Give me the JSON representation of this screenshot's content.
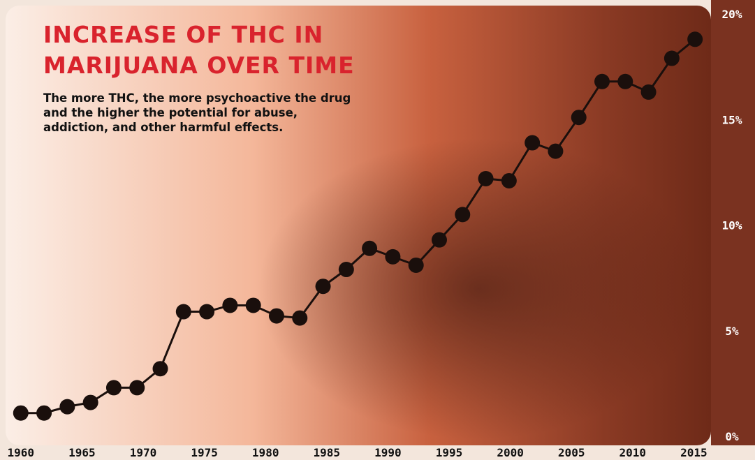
{
  "chart_data": {
    "type": "line",
    "title": "INCREASE OF THC IN MARIJUANA OVER TIME",
    "subtitle": "The more THC, the more psychoactive the drug and the higher the potential for abuse, addiction, and other harmful effects.",
    "x": [
      1960,
      1961.9,
      1963.8,
      1965.7,
      1967.6,
      1969.5,
      1971.4,
      1973.3,
      1975.2,
      1977.1,
      1979,
      1980.9,
      1982.8,
      1984.7,
      1986.6,
      1988.5,
      1990.4,
      1992.3,
      1994.2,
      1996.1,
      1998,
      1999.9,
      2001.8,
      2003.7,
      2005.6,
      2007.5,
      2009.4,
      2011.3,
      2013.2,
      2015.1
    ],
    "series": [
      {
        "name": "THC",
        "color": "#1a0f0c",
        "values": [
          1.1,
          1.1,
          1.4,
          1.6,
          2.3,
          2.3,
          3.2,
          5.9,
          5.9,
          6.2,
          6.2,
          5.7,
          5.6,
          7.1,
          7.9,
          8.9,
          8.5,
          8.1,
          9.3,
          10.5,
          12.2,
          12.1,
          13.9,
          13.5,
          15.1,
          16.8,
          16.8,
          16.3,
          17.9,
          18.8
        ]
      }
    ],
    "xlim": [
      1958.3,
      2020
    ],
    "xticks": [
      1960,
      1965,
      1970,
      1975,
      1980,
      1985,
      1990,
      1995,
      2000,
      2005,
      2010,
      2015
    ],
    "ylim": [
      0,
      20
    ],
    "yticks": [
      {
        "value": 0,
        "label": "0%"
      },
      {
        "value": 5,
        "label": "5%"
      },
      {
        "value": 10,
        "label": "10%"
      },
      {
        "value": 15,
        "label": "15%"
      },
      {
        "value": 20,
        "label": "20%"
      }
    ]
  }
}
